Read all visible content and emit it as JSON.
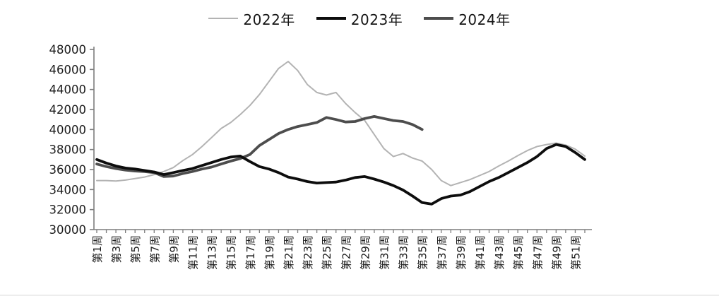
{
  "chart_data": {
    "type": "line",
    "title": "",
    "xlabel": "",
    "ylabel": "",
    "ylim": [
      30000,
      48000
    ],
    "y_tick_step": 2000,
    "y_tick_labels": [
      "30000",
      "32000",
      "34000",
      "36000",
      "38000",
      "40000",
      "42000",
      "44000",
      "46000",
      "48000"
    ],
    "x_total_weeks": 52,
    "x_tick_labels": [
      "第1周",
      "第3周",
      "第5周",
      "第7周",
      "第9周",
      "第11周",
      "第13周",
      "第15周",
      "第17周",
      "第19周",
      "第21周",
      "第23周",
      "第25周",
      "第27周",
      "第29周",
      "第31周",
      "第33周",
      "第35周",
      "第37周",
      "第39周",
      "第41周",
      "第43周",
      "第45周",
      "第47周",
      "第49周",
      "第51周"
    ],
    "grid": false,
    "legend_position": "top-center",
    "axis_color": "#7d7d7d",
    "series": [
      {
        "name": "2022年",
        "color": "#b3b3b3",
        "width": 2,
        "start_week": 1,
        "values": [
          34900,
          34900,
          34850,
          34950,
          35100,
          35250,
          35500,
          35800,
          36200,
          36900,
          37500,
          38300,
          39200,
          40100,
          40700,
          41500,
          42400,
          43500,
          44800,
          46100,
          46800,
          45900,
          44500,
          43700,
          43450,
          43700,
          42600,
          41700,
          40900,
          39500,
          38100,
          37300,
          37600,
          37150,
          36850,
          36000,
          34900,
          34400,
          34700,
          35000,
          35400,
          35800,
          36350,
          36850,
          37400,
          37900,
          38300,
          38500,
          38650,
          38450,
          38050,
          37350
        ]
      },
      {
        "name": "2023年",
        "color": "#0d0d0d",
        "width": 3.8,
        "start_week": 1,
        "values": [
          37000,
          36650,
          36350,
          36150,
          36050,
          35900,
          35750,
          35500,
          35700,
          35900,
          36100,
          36400,
          36700,
          37000,
          37250,
          37350,
          36800,
          36300,
          36050,
          35700,
          35250,
          35050,
          34800,
          34650,
          34700,
          34750,
          34950,
          35200,
          35300,
          35050,
          34750,
          34400,
          33950,
          33350,
          32700,
          32550,
          33100,
          33350,
          33450,
          33800,
          34300,
          34800,
          35200,
          35700,
          36200,
          36700,
          37300,
          38100,
          38500,
          38300,
          37700,
          37000
        ]
      },
      {
        "name": "2024年",
        "color": "#4d4d4d",
        "width": 3.8,
        "start_week": 1,
        "values": [
          36550,
          36300,
          36100,
          35950,
          35850,
          35800,
          35700,
          35300,
          35350,
          35600,
          35800,
          36050,
          36250,
          36550,
          36850,
          37100,
          37500,
          38400,
          39000,
          39600,
          40000,
          40300,
          40500,
          40700,
          41200,
          41000,
          40750,
          40800,
          41100,
          41300,
          41100,
          40900,
          40800,
          40500,
          40000
        ]
      }
    ]
  }
}
